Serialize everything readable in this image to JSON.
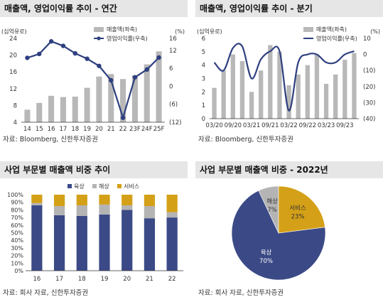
{
  "panels": {
    "p1": {
      "title": "매출액, 영업이익률 추이 - 연간",
      "source": "자료: Bloomberg, 신한투자증권"
    },
    "p2": {
      "title": "매출액, 영업이익률 추이 - 분기",
      "source": "자료: Bloomberg, 신한투자증권"
    },
    "p3": {
      "title": "사업 부문별 매출액 비중 추이",
      "source": "자료: 회사 자료, 신한투자증권"
    },
    "p4": {
      "title": "사업 부문별 매출액 비중 - 2022년",
      "source": "자료: 회사 자료, 신한투자증권"
    }
  },
  "colors": {
    "bar": "#b8b8b8",
    "line": "#2e3f7f",
    "navy": "#3b4a86",
    "gray": "#b4b4b4",
    "gold": "#d4a017"
  },
  "chart_data": [
    {
      "id": "annual",
      "type": "bar+line",
      "title": "매출액, 영업이익률 추이 - 연간",
      "ylabel_left": "(십억유로)",
      "ylabel_right": "(%)",
      "categories": [
        "14",
        "15",
        "16",
        "17",
        "18",
        "19",
        "20",
        "21",
        "22",
        "23F",
        "24F",
        "25F"
      ],
      "ylim_left": [
        4,
        24
      ],
      "yticks_left": [
        "4",
        "8",
        "12",
        "16",
        "20",
        "24"
      ],
      "ylim_right": [
        -12,
        16
      ],
      "yticks_right": [
        "(12)",
        "(6)",
        "0",
        "6",
        "12",
        "16"
      ],
      "series": [
        {
          "name": "매출액(좌축)",
          "type": "bar",
          "axis": "left",
          "values": [
            7.0,
            8.6,
            10.3,
            10.0,
            10.1,
            12.2,
            14.9,
            15.5,
            14.3,
            15.2,
            17.8,
            20.9
          ]
        },
        {
          "name": "영업이익률(우축)",
          "type": "line",
          "axis": "right",
          "values": [
            9.5,
            10.8,
            15.0,
            13.5,
            11.0,
            9.2,
            6.8,
            2.0,
            -10.5,
            3.0,
            5.6,
            9.6
          ]
        }
      ]
    },
    {
      "id": "quarterly",
      "type": "bar+line",
      "title": "매출액, 영업이익률 추이 - 분기",
      "ylabel_left": "(십억유로)",
      "ylabel_right": "(%)",
      "categories": [
        "03/20",
        "06/20",
        "09/20",
        "12/20",
        "03/21",
        "06/21",
        "09/21",
        "12/21",
        "03/22",
        "06/22",
        "09/22",
        "12/22",
        "03/23",
        "06/23",
        "09/23",
        "12/23"
      ],
      "xtick_labels": [
        "03/20",
        "09/20",
        "03/21",
        "09/21",
        "03/22",
        "09/22",
        "03/23",
        "09/23"
      ],
      "ylim_left": [
        0,
        6
      ],
      "yticks_left": [
        "0",
        "1",
        "2",
        "3",
        "4",
        "5",
        "6"
      ],
      "ylim_right": [
        -40,
        10
      ],
      "yticks_right": [
        "(40)",
        "(30)",
        "(20)",
        "(10)",
        "0",
        "10"
      ],
      "series": [
        {
          "name": "매출액(좌축)",
          "type": "bar",
          "axis": "left",
          "values": [
            2.3,
            3.6,
            4.8,
            4.3,
            2.0,
            3.6,
            5.5,
            5.0,
            2.5,
            3.3,
            4.0,
            4.8,
            2.6,
            3.3,
            4.4,
            4.9
          ]
        },
        {
          "name": "영업이익률(우축)",
          "type": "line",
          "axis": "right",
          "values": [
            -5,
            -10,
            4,
            5,
            -15,
            -3,
            2,
            2,
            -35,
            -5,
            0,
            0,
            -5,
            -5,
            0,
            2
          ]
        }
      ]
    },
    {
      "id": "segment-trend",
      "type": "stacked-bar",
      "title": "사업 부문별 매출액 비중 추이",
      "categories": [
        "16",
        "17",
        "18",
        "19",
        "20",
        "21",
        "22"
      ],
      "ylim": [
        0,
        100
      ],
      "yticks": [
        "0%",
        "10%",
        "20%",
        "30%",
        "40%",
        "50%",
        "60%",
        "70%",
        "80%",
        "90%",
        "100%"
      ],
      "series": [
        {
          "name": "육상",
          "values": [
            86,
            73,
            72,
            74,
            80,
            69,
            70
          ]
        },
        {
          "name": "해상",
          "values": [
            3,
            12,
            14,
            13,
            6,
            16,
            7
          ]
        },
        {
          "name": "서비스",
          "values": [
            11,
            15,
            14,
            13,
            14,
            15,
            23
          ]
        }
      ]
    },
    {
      "id": "segment-2022",
      "type": "pie",
      "title": "사업 부문별 매출액 비중 - 2022년",
      "slices": [
        {
          "name": "육상",
          "label": "70%",
          "value": 70
        },
        {
          "name": "해상",
          "label": "7%",
          "value": 7
        },
        {
          "name": "서비스",
          "label": "23%",
          "value": 23
        }
      ]
    }
  ]
}
